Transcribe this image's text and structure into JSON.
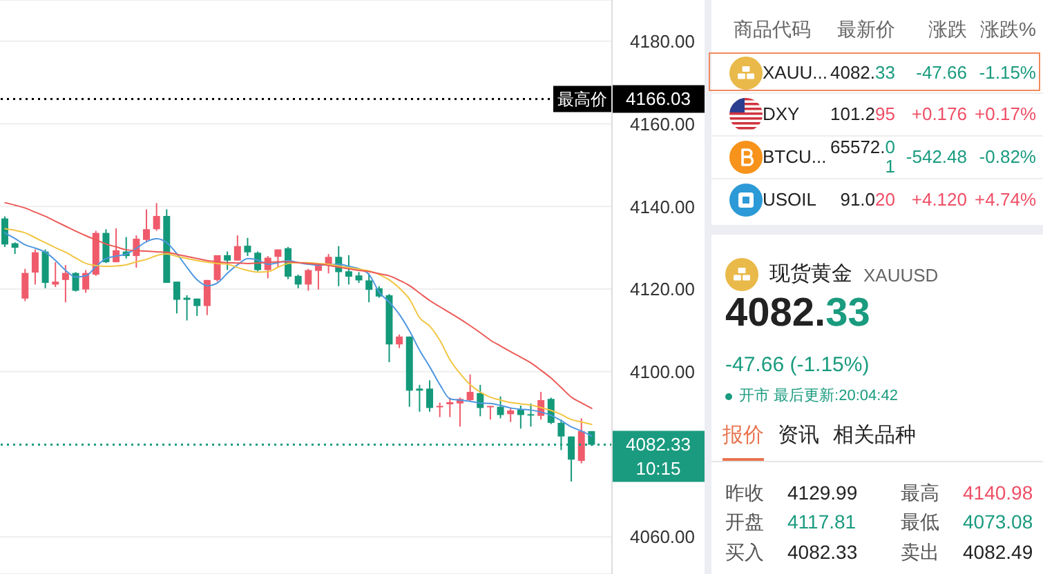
{
  "chart_data": [
    {
      "type": "candlestick",
      "categories": [
        null,
        null,
        null,
        null,
        null,
        null,
        null,
        null,
        null,
        null,
        null,
        null,
        null,
        null,
        null,
        null,
        null,
        null,
        null,
        null,
        null,
        null,
        null,
        null,
        null,
        null,
        null,
        null,
        null,
        null,
        null,
        null,
        null,
        null,
        null,
        null,
        null,
        null,
        null,
        null,
        null,
        null,
        null,
        null,
        null,
        null,
        null,
        null,
        null,
        null,
        null,
        null,
        null,
        null,
        null,
        null,
        null,
        null,
        null
      ],
      "ohlc": [
        [
          4137.1,
          4137.6,
          4130.2,
          4130.8
        ],
        [
          4131.1,
          4131.3,
          4128.5,
          4130.0
        ],
        [
          4117.7,
          4124.9,
          4117.1,
          4123.9
        ],
        [
          4124.0,
          4129.6,
          4121.1,
          4128.9
        ],
        [
          4129.1,
          4129.6,
          4120.2,
          4121.5
        ],
        [
          4121.1,
          4126.5,
          4120.5,
          4121.8
        ],
        [
          4122.2,
          4125.8,
          4116.8,
          4123.9
        ],
        [
          4123.9,
          4124.1,
          4119.4,
          4119.6
        ],
        [
          4119.9,
          4124.6,
          4119.1,
          4123.9
        ],
        [
          4123.5,
          4134.1,
          4123.2,
          4133.6
        ],
        [
          4133.6,
          4134.5,
          4126.3,
          4126.5
        ],
        [
          4126.5,
          4134.7,
          4126.5,
          4129.4
        ],
        [
          4129.1,
          4132.6,
          4127.4,
          4128.0
        ],
        [
          4128.0,
          4133.0,
          4125.2,
          4132.2
        ],
        [
          4131.9,
          4139.3,
          4131.3,
          4134.5
        ],
        [
          4134.5,
          4140.8,
          4134.1,
          4137.7
        ],
        [
          4137.7,
          4139.3,
          4121.5,
          4121.5
        ],
        [
          4121.8,
          4121.8,
          4114.1,
          4117.4
        ],
        [
          4117.9,
          4118.5,
          4112.4,
          4117.4
        ],
        [
          4117.7,
          4117.7,
          4113.5,
          4115.9
        ],
        [
          4115.9,
          4122.2,
          4113.7,
          4122.2
        ],
        [
          4122.2,
          4128.2,
          4121.8,
          4128.2
        ],
        [
          4128.2,
          4129.1,
          4124.6,
          4126.9
        ],
        [
          4126.9,
          4133.0,
          4126.9,
          4130.4
        ],
        [
          4130.5,
          4132.4,
          4128.0,
          4128.9
        ],
        [
          4128.8,
          4129.1,
          4124.3,
          4124.6
        ],
        [
          4124.6,
          4128.0,
          4122.6,
          4127.6
        ],
        [
          4127.8,
          4129.6,
          4125.2,
          4129.6
        ],
        [
          4129.9,
          4130.2,
          4122.4,
          4123.0
        ],
        [
          4123.2,
          4123.5,
          4120.2,
          4121.1
        ],
        [
          4121.1,
          4124.9,
          4119.6,
          4124.6
        ],
        [
          4124.4,
          4125.9,
          4119.9,
          4125.8
        ],
        [
          4125.8,
          4128.5,
          4123.8,
          4127.8
        ],
        [
          4127.8,
          4130.4,
          4120.7,
          4124.1
        ],
        [
          4124.3,
          4128.2,
          4121.1,
          4123.0
        ],
        [
          4123.3,
          4124.1,
          4121.5,
          4122.1
        ],
        [
          4122.1,
          4123.8,
          4116.8,
          4119.8
        ],
        [
          4120.2,
          4120.7,
          4117.9,
          4118.2
        ],
        [
          4118.5,
          4118.8,
          4102.3,
          4106.6
        ],
        [
          4106.6,
          4109.0,
          4105.7,
          4108.5
        ],
        [
          4108.5,
          4108.5,
          4091.5,
          4095.4
        ],
        [
          4095.9,
          4096.8,
          4090.3,
          4095.4
        ],
        [
          4095.9,
          4097.9,
          4090.3,
          4091.2
        ],
        [
          4091.4,
          4092.5,
          4089.0,
          4091.7
        ],
        [
          4092.1,
          4093.7,
          4089.0,
          4092.6
        ],
        [
          4092.3,
          4093.7,
          4086.7,
          4093.4
        ],
        [
          4093.1,
          4099.3,
          4092.9,
          4095.1
        ],
        [
          4094.8,
          4096.8,
          4089.2,
          4091.2
        ],
        [
          4091.4,
          4091.7,
          4088.4,
          4091.7
        ],
        [
          4091.5,
          4094.0,
          4088.7,
          4089.5
        ],
        [
          4089.7,
          4091.2,
          4087.8,
          4090.6
        ],
        [
          4090.8,
          4091.8,
          4086.2,
          4089.5
        ],
        [
          4089.7,
          4092.3,
          4086.7,
          4089.4
        ],
        [
          4089.3,
          4095.1,
          4088.4,
          4093.1
        ],
        [
          4093.4,
          4093.7,
          4087.3,
          4087.6
        ],
        [
          4087.6,
          4088.4,
          4081.0,
          4084.3
        ],
        [
          4084.3,
          4084.3,
          4073.4,
          4078.7
        ],
        [
          4078.4,
          4088.7,
          4077.8,
          4085.6
        ],
        [
          4085.6,
          4085.6,
          4082.0,
          4082.3
        ]
      ],
      "colors": [
        "#14997b",
        "#14997b",
        "#ef5b6b",
        "#ef5b6b",
        "#14997b",
        "#ef5b6b",
        "#ef5b6b",
        "#14997b",
        "#ef5b6b",
        "#ef5b6b",
        "#14997b",
        "#ef5b6b",
        "#14997b",
        "#ef5b6b",
        "#ef5b6b",
        "#ef5b6b",
        "#14997b",
        "#14997b",
        "#14997b",
        "#14997b",
        "#ef5b6b",
        "#ef5b6b",
        "#14997b",
        "#ef5b6b",
        "#14997b",
        "#14997b",
        "#ef5b6b",
        "#ef5b6b",
        "#14997b",
        "#14997b",
        "#ef5b6b",
        "#ef5b6b",
        "#ef5b6b",
        "#14997b",
        "#14997b",
        "#14997b",
        "#14997b",
        "#14997b",
        "#14997b",
        "#ef5b6b",
        "#14997b",
        "#14997b",
        "#14997b",
        "#ef5b6b",
        "#ef5b6b",
        "#ef5b6b",
        "#ef5b6b",
        "#14997b",
        "#ef5b6b",
        "#14997b",
        "#ef5b6b",
        "#14997b",
        "#14997b",
        "#ef5b6b",
        "#14997b",
        "#14997b",
        "#14997b",
        "#ef5b6b",
        "#14997b"
      ],
      "series": [
        {
          "type": "line",
          "color": "#4e97e0",
          "values": [
            4133.6,
            4132.2,
            4130.7,
            4129.9,
            4128.9,
            4126.9,
            4124.5,
            4122.9,
            4123.2,
            4125.5,
            4127.4,
            4128.0,
            4128.5,
            4129.9,
            4131.5,
            4132.2,
            4131.2,
            4128.5,
            4125.2,
            4122.2,
            4120.8,
            4121.5,
            4123.9,
            4125.9,
            4127.4,
            4127.0,
            4126.0,
            4126.4,
            4126.9,
            4126.4,
            4126.0,
            4125.8,
            4125.9,
            4126.0,
            4125.5,
            4124.9,
            4123.5,
            4119.2,
            4116.8,
            4113.8,
            4109.8,
            4105.1,
            4101.1,
            4096.8,
            4093.4,
            4093.1,
            4092.8,
            4092.4,
            4092.3,
            4091.8,
            4091.2,
            4090.9,
            4090.7,
            4090.2,
            4089.4,
            4088.1,
            4086.6,
            4085.6,
            4084.4
          ]
        },
        {
          "type": "line",
          "color": "#f2c542",
          "values": [
            4134.6,
            4134.2,
            4133.6,
            4132.4,
            4131.2,
            4130.0,
            4128.9,
            4127.5,
            4126.2,
            4125.7,
            4125.5,
            4125.6,
            4125.9,
            4126.6,
            4127.2,
            4128.1,
            4128.5,
            4127.9,
            4127.4,
            4126.9,
            4126.5,
            4126.2,
            4126.0,
            4125.2,
            4124.5,
            4124.1,
            4124.2,
            4125.3,
            4126.2,
            4126.4,
            4126.4,
            4126.2,
            4126.0,
            4125.6,
            4125.2,
            4124.8,
            4124.4,
            4123.5,
            4122.2,
            4120.2,
            4117.5,
            4113.0,
            4111.0,
            4107.5,
            4102.8,
            4099.5,
            4096.8,
            4095.0,
            4093.8,
            4093.1,
            4092.5,
            4092.2,
            4091.9,
            4091.3,
            4090.6,
            4089.6,
            4088.4,
            4087.8,
            4087.2
          ]
        },
        {
          "type": "line",
          "color": "#ec5a57",
          "values": [
            4140.9,
            4140.3,
            4139.6,
            4138.6,
            4137.6,
            4136.4,
            4135.2,
            4134.0,
            4132.9,
            4131.9,
            4130.9,
            4130.2,
            4129.5,
            4129.3,
            4129.2,
            4129.0,
            4128.9,
            4128.4,
            4127.9,
            4127.4,
            4126.9,
            4126.6,
            4126.4,
            4126.3,
            4126.2,
            4126.3,
            4126.5,
            4126.6,
            4126.6,
            4126.4,
            4126.2,
            4126.0,
            4125.7,
            4125.3,
            4124.9,
            4124.5,
            4124.2,
            4123.7,
            4123.2,
            4122.1,
            4120.8,
            4119.0,
            4117.2,
            4115.7,
            4114.2,
            4112.7,
            4111.1,
            4109.4,
            4107.6,
            4106.2,
            4104.8,
            4103.5,
            4102.1,
            4100.3,
            4098.4,
            4096.1,
            4093.8,
            4092.4,
            4091.1
          ]
        }
      ],
      "ylim": [
        4051,
        4190
      ],
      "yticks": [
        {
          "value": 4060,
          "label": "4060.00"
        },
        {
          "value": 4100,
          "label": "4100.00"
        },
        {
          "value": 4120,
          "label": "4120.00"
        },
        {
          "value": 4140,
          "label": "4140.00"
        },
        {
          "value": 4160,
          "label": "4160.00"
        },
        {
          "value": 4180,
          "label": "4180.00"
        }
      ],
      "grid": "y",
      "tick_labels": "y",
      "marker": "none",
      "ref_lines": [
        {
          "axis": "y",
          "value": 4166.03,
          "label": "最高价",
          "color": "#000000",
          "line_style": "dotted"
        },
        {
          "axis": "y",
          "value": 4082.33,
          "color": "#1a9b7f",
          "line_style": "dotted"
        }
      ],
      "annotations": [
        "4166.03",
        "4082.33",
        "10:15"
      ]
    },
    {
      "type": "other",
      "annotations": [
        "商品代码",
        "最新价",
        "涨跌",
        "涨跌%",
        "XAUU...",
        "4082.33",
        "-47.66",
        "-1.15%",
        "DXY",
        "101.295",
        "+0.176",
        "+0.17%",
        "BTCU...",
        "65572.01",
        "-542.48",
        "-0.82%",
        "USOIL",
        "91.020",
        "+4.120",
        "+4.74%"
      ]
    },
    {
      "type": "other",
      "title": "现货黄金",
      "subtitle": "XAUUSD",
      "color": "#1a9b7f",
      "annotations": [
        "4082.33",
        "-47.66 (-1.15%)",
        "开市 最后更新:20:04:42",
        "报价",
        "资讯",
        "相关品种"
      ],
      "categories": [
        "昨收",
        "最高",
        "开盘",
        "最低",
        "买入",
        "卖出"
      ],
      "values": [
        4129.99,
        4140.98,
        4117.81,
        4073.08,
        4082.33,
        4082.49
      ],
      "colors": [
        "#222222",
        "#ef4f66",
        "#1a9b7f",
        "#1a9b7f",
        "#222222",
        "#222222"
      ],
      "data_labels": true
    }
  ]
}
